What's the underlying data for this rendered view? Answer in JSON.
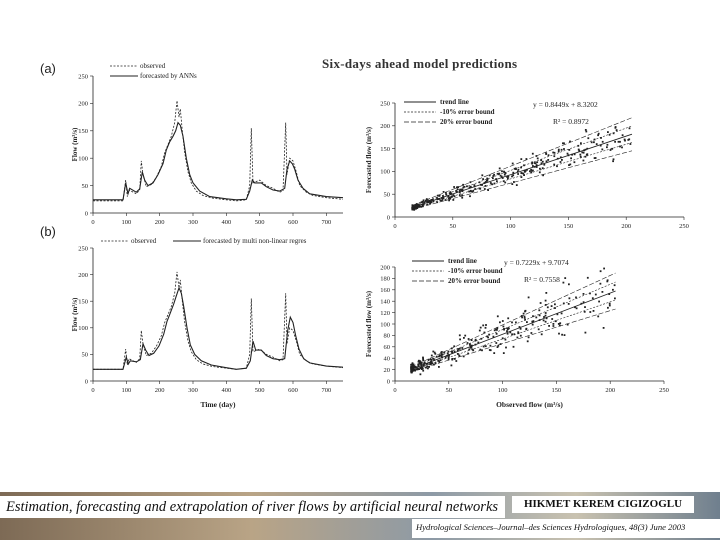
{
  "slide": {
    "title": "Six-days  ahead  model  predictions",
    "panel_a_label": "(a)",
    "panel_b_label": "(b)"
  },
  "footer": {
    "title": "Estimation, forecasting and extrapolation of river flows by artificial neural networks",
    "author": "HIKMET KEREM CIGIZOGLU",
    "journal": "Hydrological Sciences–Journal–des Sciences Hydrologiques,",
    "volume": "48(3) June 2003"
  },
  "colors": {
    "ink": "#222222",
    "grid": "#999999"
  },
  "chart_data": [
    {
      "id": "ts-a",
      "type": "line",
      "legend": [
        "observed",
        "forecasted by ANNs"
      ],
      "ylabel": "Flow (m³/s)",
      "xlabel": "",
      "xlim": [
        0,
        750
      ],
      "ylim": [
        0,
        250
      ],
      "xticks": [
        0,
        100,
        200,
        300,
        400,
        500,
        600,
        700
      ],
      "yticks": [
        0,
        50,
        100,
        150,
        200,
        250
      ],
      "series": [
        {
          "name": "observed",
          "style": "dashed",
          "x": [
            0,
            90,
            98,
            103,
            108,
            130,
            140,
            145,
            150,
            160,
            175,
            190,
            205,
            215,
            225,
            235,
            245,
            252,
            258,
            262,
            268,
            275,
            285,
            295,
            310,
            330,
            360,
            400,
            430,
            460,
            470,
            475,
            480,
            500,
            520,
            540,
            560,
            570,
            578,
            582,
            590,
            600,
            610,
            620,
            640,
            660,
            700,
            750
          ],
          "y": [
            22,
            22,
            60,
            30,
            42,
            35,
            42,
            95,
            70,
            48,
            52,
            65,
            85,
            110,
            125,
            140,
            165,
            205,
            175,
            190,
            150,
            110,
            75,
            55,
            40,
            32,
            27,
            24,
            22,
            24,
            50,
            155,
            55,
            60,
            50,
            45,
            38,
            40,
            165,
            70,
            100,
            95,
            75,
            50,
            38,
            32,
            28,
            25
          ]
        },
        {
          "name": "forecasted by ANNs",
          "style": "solid",
          "x": [
            0,
            90,
            98,
            105,
            110,
            130,
            140,
            148,
            155,
            165,
            180,
            195,
            210,
            220,
            230,
            240,
            248,
            255,
            262,
            270,
            280,
            290,
            300,
            320,
            350,
            400,
            430,
            460,
            470,
            478,
            485,
            505,
            520,
            540,
            560,
            575,
            582,
            590,
            598,
            605,
            615,
            630,
            650,
            700,
            750
          ],
          "y": [
            24,
            24,
            55,
            35,
            45,
            38,
            44,
            75,
            60,
            50,
            55,
            70,
            90,
            115,
            130,
            140,
            150,
            165,
            160,
            140,
            100,
            70,
            55,
            40,
            30,
            26,
            24,
            25,
            40,
            60,
            55,
            55,
            48,
            42,
            40,
            45,
            80,
            95,
            90,
            80,
            60,
            45,
            35,
            30,
            28
          ]
        }
      ]
    },
    {
      "id": "ts-b",
      "type": "line",
      "legend": [
        "observed",
        "forecasted by multi non-linear regres"
      ],
      "ylabel": "Flow (m³/s)",
      "xlabel": "Time (day)",
      "xlim": [
        0,
        750
      ],
      "ylim": [
        0,
        250
      ],
      "xticks": [
        0,
        100,
        200,
        300,
        400,
        500,
        600,
        700
      ],
      "yticks": [
        0,
        50,
        100,
        150,
        200,
        250
      ],
      "series": [
        {
          "name": "observed",
          "style": "dashed",
          "x": [
            0,
            90,
            98,
            103,
            108,
            130,
            140,
            145,
            150,
            160,
            175,
            190,
            205,
            215,
            225,
            235,
            245,
            252,
            258,
            262,
            268,
            275,
            285,
            295,
            310,
            330,
            360,
            400,
            430,
            460,
            470,
            475,
            480,
            500,
            520,
            540,
            560,
            570,
            578,
            582,
            590,
            600,
            610,
            620,
            640,
            660,
            700,
            750
          ],
          "y": [
            22,
            22,
            60,
            30,
            42,
            35,
            42,
            95,
            70,
            48,
            52,
            65,
            85,
            110,
            125,
            140,
            165,
            205,
            175,
            190,
            150,
            110,
            75,
            55,
            40,
            32,
            27,
            24,
            22,
            24,
            50,
            155,
            55,
            60,
            50,
            45,
            38,
            40,
            165,
            70,
            100,
            95,
            75,
            50,
            38,
            32,
            28,
            25
          ]
        },
        {
          "name": "forecasted by multi non-linear regres",
          "style": "solid",
          "x": [
            0,
            90,
            100,
            106,
            112,
            130,
            142,
            150,
            158,
            168,
            182,
            198,
            212,
            222,
            232,
            242,
            250,
            258,
            265,
            272,
            282,
            292,
            305,
            325,
            355,
            400,
            430,
            460,
            472,
            480,
            488,
            505,
            520,
            540,
            560,
            575,
            584,
            592,
            600,
            608,
            618,
            632,
            650,
            700,
            750
          ],
          "y": [
            22,
            22,
            45,
            32,
            38,
            36,
            40,
            70,
            58,
            48,
            52,
            66,
            88,
            112,
            128,
            145,
            160,
            175,
            165,
            140,
            100,
            68,
            50,
            38,
            30,
            25,
            22,
            24,
            38,
            75,
            58,
            58,
            48,
            42,
            40,
            42,
            95,
            120,
            110,
            85,
            60,
            42,
            34,
            28,
            26
          ]
        }
      ]
    },
    {
      "id": "sc-a",
      "type": "scatter",
      "legend": [
        "trend line",
        "-10% error bound",
        "20% error bound"
      ],
      "equation": "y = 0.8449x + 8.3202",
      "r2": "R² = 0.8972",
      "slope": 0.8449,
      "intercept": 8.3202,
      "ylabel": "Forecasted flow (m³/s)",
      "xlabel": "",
      "xlim": [
        0,
        250
      ],
      "ylim": [
        0,
        250
      ],
      "xticks": [
        0,
        50,
        100,
        150,
        200,
        250
      ],
      "yticks": [
        0,
        50,
        100,
        150,
        200,
        250
      ],
      "seed": 7,
      "n_points": 320,
      "spread": 0.14
    },
    {
      "id": "sc-b",
      "type": "scatter",
      "legend": [
        "trend line",
        "-10% error bound",
        "20% error bound"
      ],
      "equation": "y = 0.7229x + 9.7074",
      "r2": "R² = 0.7558",
      "slope": 0.7229,
      "intercept": 9.7074,
      "ylabel": "Forecasted flow (m³/s)",
      "xlabel": "Observed flow (m³/s)",
      "xlim": [
        0,
        250
      ],
      "ylim": [
        0,
        200
      ],
      "xticks": [
        0,
        50,
        100,
        150,
        200,
        250
      ],
      "yticks": [
        0,
        20,
        40,
        60,
        80,
        100,
        120,
        140,
        160,
        180,
        200
      ],
      "seed": 13,
      "n_points": 320,
      "spread": 0.24
    }
  ]
}
